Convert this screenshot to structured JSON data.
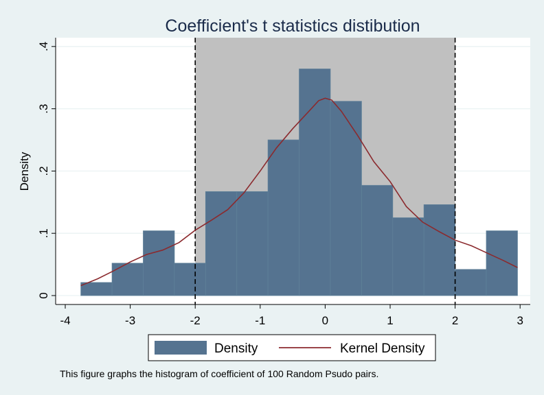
{
  "chart_data": {
    "type": "bar",
    "title": "Coefficient's  t statistics  distibution",
    "xlabel": "",
    "ylabel": "Density",
    "xlim": [
      -4,
      3
    ],
    "ylim": [
      0,
      0.4
    ],
    "x_ticks": [
      -4,
      -3,
      -2,
      -1,
      0,
      1,
      2,
      3
    ],
    "x_tick_labels": [
      "-4",
      "-3",
      "-2",
      "-1",
      "0",
      "1",
      "2",
      "3"
    ],
    "y_ticks": [
      0,
      0.1,
      0.2,
      0.3,
      0.4
    ],
    "y_tick_labels": [
      "0",
      ".1",
      ".2",
      ".3",
      ".4"
    ],
    "grid": true,
    "shaded_region": [
      -2,
      2
    ],
    "reference_lines": [
      -2,
      2
    ],
    "histogram": {
      "name": "Density",
      "color": "#557390",
      "bins": [
        {
          "start": -3.76,
          "end": -3.28,
          "value": 0.021
        },
        {
          "start": -3.28,
          "end": -2.8,
          "value": 0.052
        },
        {
          "start": -2.8,
          "end": -2.32,
          "value": 0.104
        },
        {
          "start": -2.32,
          "end": -1.84,
          "value": 0.052
        },
        {
          "start": -1.84,
          "end": -1.36,
          "value": 0.167
        },
        {
          "start": -1.36,
          "end": -0.88,
          "value": 0.167
        },
        {
          "start": -0.88,
          "end": -0.4,
          "value": 0.25
        },
        {
          "start": -0.4,
          "end": 0.08,
          "value": 0.364
        },
        {
          "start": 0.08,
          "end": 0.56,
          "value": 0.312
        },
        {
          "start": 0.56,
          "end": 1.04,
          "value": 0.177
        },
        {
          "start": 1.04,
          "end": 1.52,
          "value": 0.125
        },
        {
          "start": 1.52,
          "end": 2.0,
          "value": 0.146
        },
        {
          "start": 2.0,
          "end": 2.48,
          "value": 0.042
        },
        {
          "start": 2.48,
          "end": 2.96,
          "value": 0.104
        }
      ]
    },
    "kernel": {
      "name": "Kernel Density",
      "color": "#8b2a2e",
      "x": [
        -3.76,
        -3.5,
        -3.25,
        -3.0,
        -2.75,
        -2.5,
        -2.25,
        -2.0,
        -1.75,
        -1.5,
        -1.25,
        -1.0,
        -0.75,
        -0.5,
        -0.25,
        -0.1,
        0.0,
        0.1,
        0.25,
        0.5,
        0.75,
        1.0,
        1.25,
        1.5,
        1.75,
        2.0,
        2.25,
        2.5,
        2.75,
        2.96
      ],
      "y": [
        0.016,
        0.027,
        0.04,
        0.054,
        0.066,
        0.073,
        0.085,
        0.105,
        0.121,
        0.138,
        0.165,
        0.2,
        0.237,
        0.268,
        0.296,
        0.313,
        0.317,
        0.314,
        0.296,
        0.257,
        0.215,
        0.183,
        0.143,
        0.118,
        0.103,
        0.089,
        0.08,
        0.068,
        0.056,
        0.045
      ]
    },
    "legend": {
      "position": "bottom-center",
      "items": [
        "Density",
        "Kernel Density"
      ]
    },
    "note": "This figure graphs the histogram of coefficient of 100 Random Psudo pairs."
  }
}
